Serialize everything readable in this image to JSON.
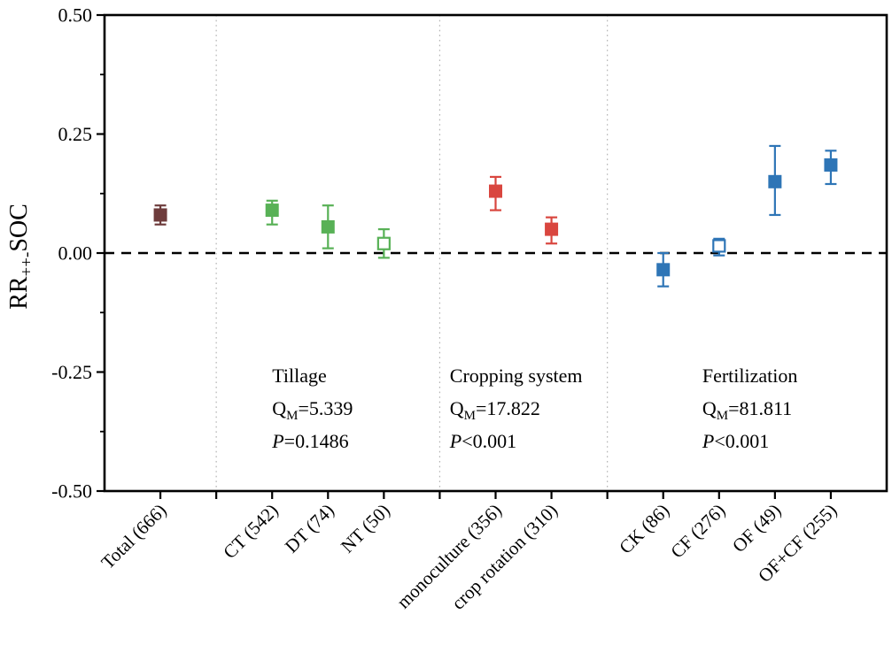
{
  "figure": {
    "background": "#ffffff",
    "frame_color": "#000000",
    "separator_color": "#b3b3b3",
    "zero_line_color": "#000000"
  },
  "chart_data": {
    "type": "scatter",
    "subtype": "forest-plot-mean-ci",
    "title": "",
    "ylabel": {
      "prefix": "RR",
      "subscript": "++-",
      "suffix": "SOC"
    },
    "ylim": [
      -0.5,
      0.5
    ],
    "yticks_major": [
      0.5,
      0.25,
      0.0,
      -0.25,
      -0.5
    ],
    "ytick_labels": [
      "0.50",
      "0.25",
      "0.00",
      "-0.25",
      "-0.50"
    ],
    "yticks_minor": [
      0.375,
      0.125,
      -0.125,
      -0.375
    ],
    "x_slot_count": 14,
    "zero_reference_line": 0.0,
    "group_separator_slots": [
      2,
      6,
      9
    ],
    "grid": false,
    "legend": null,
    "series": [
      {
        "name": "Total",
        "color": "#6e3c3c",
        "points": [
          {
            "label": "Total (666)",
            "slot": 1,
            "mean": 0.08,
            "ci_low": 0.06,
            "ci_high": 0.1,
            "filled": true
          }
        ]
      },
      {
        "name": "Tillage",
        "color": "#58b156",
        "points": [
          {
            "label": "CT (542)",
            "slot": 3,
            "mean": 0.09,
            "ci_low": 0.06,
            "ci_high": 0.11,
            "filled": true
          },
          {
            "label": "DT (74)",
            "slot": 4,
            "mean": 0.055,
            "ci_low": 0.01,
            "ci_high": 0.1,
            "filled": true
          },
          {
            "label": "NT (50)",
            "slot": 5,
            "mean": 0.02,
            "ci_low": -0.01,
            "ci_high": 0.05,
            "filled": false
          }
        ]
      },
      {
        "name": "Cropping system",
        "color": "#d9463f",
        "points": [
          {
            "label": "monoculture (356)",
            "slot": 7,
            "mean": 0.13,
            "ci_low": 0.09,
            "ci_high": 0.16,
            "filled": true
          },
          {
            "label": "crop rotation (310)",
            "slot": 8,
            "mean": 0.05,
            "ci_low": 0.02,
            "ci_high": 0.075,
            "filled": true
          }
        ]
      },
      {
        "name": "Fertilization",
        "color": "#2e75b6",
        "points": [
          {
            "label": "CK (86)",
            "slot": 10,
            "mean": -0.035,
            "ci_low": -0.07,
            "ci_high": 0.0,
            "filled": true
          },
          {
            "label": "CF (276)",
            "slot": 11,
            "mean": 0.015,
            "ci_low": -0.005,
            "ci_high": 0.03,
            "filled": false
          },
          {
            "label": "OF (49)",
            "slot": 12,
            "mean": 0.15,
            "ci_low": 0.08,
            "ci_high": 0.225,
            "filled": true
          },
          {
            "label": "OF+CF (255)",
            "slot": 13,
            "mean": 0.185,
            "ci_low": 0.145,
            "ci_high": 0.215,
            "filled": true
          }
        ]
      }
    ],
    "annotations": [
      {
        "id": "tillage",
        "title": "Tillage",
        "q_label": "Q",
        "q_subscript": "M",
        "q_value": "=5.339",
        "p_label": "P",
        "p_value": "=0.1486",
        "anchor_slot": 3.0
      },
      {
        "id": "cropping-system",
        "title": "Cropping system",
        "q_label": "Q",
        "q_subscript": "M",
        "q_value": "=17.822",
        "p_label": "P",
        "p_value": "<0.001",
        "anchor_slot": 6.18
      },
      {
        "id": "fertilization",
        "title": "Fertilization",
        "q_label": "Q",
        "q_subscript": "M",
        "q_value": "=81.811",
        "p_label": "P",
        "p_value": "<0.001",
        "anchor_slot": 10.7
      }
    ]
  }
}
